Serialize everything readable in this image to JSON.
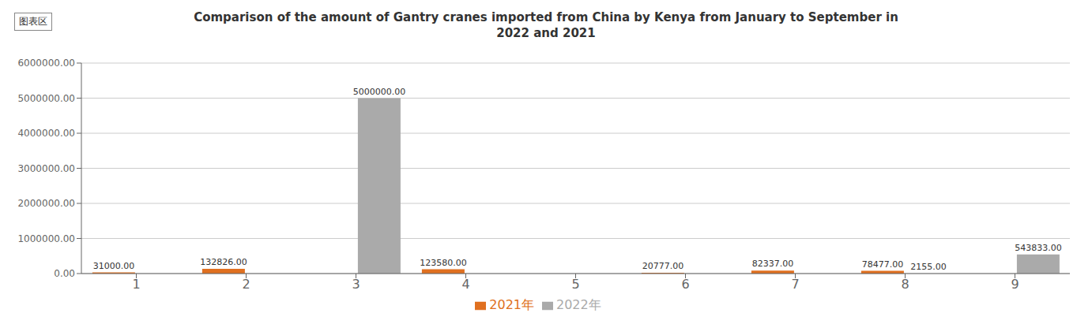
{
  "chart_data": {
    "type": "bar",
    "title": "Comparison of the amount of Gantry cranes imported from China by Kenya from January to September in\n2022 and 2021",
    "annotations": [
      "图表区"
    ],
    "categories": [
      "1",
      "2",
      "3",
      "4",
      "5",
      "6",
      "7",
      "8",
      "9"
    ],
    "series": [
      {
        "name": "2021年",
        "color": "#E07020",
        "values": [
          31000,
          132826,
          0,
          123580,
          0,
          20777,
          82337,
          78477,
          0
        ],
        "value_labels": [
          "31000.00",
          "132826.00",
          null,
          "123580.00",
          null,
          "20777.00",
          "82337.00",
          "78477.00",
          null
        ]
      },
      {
        "name": "2022年",
        "color": "#AAAAAA",
        "values": [
          0,
          0,
          5000000,
          0,
          0,
          0,
          0,
          2155,
          543833
        ],
        "value_labels": [
          null,
          null,
          "5000000.00",
          null,
          null,
          null,
          null,
          "2155.00",
          "543833.00"
        ]
      }
    ],
    "ylim": [
      0,
      6000000
    ],
    "yticks": [
      {
        "value": 0,
        "label": "0.00"
      },
      {
        "value": 1000000,
        "label": "1000000.00"
      },
      {
        "value": 2000000,
        "label": "2000000.00"
      },
      {
        "value": 3000000,
        "label": "3000000.00"
      },
      {
        "value": 4000000,
        "label": "4000000.00"
      },
      {
        "value": 5000000,
        "label": "5000000.00"
      },
      {
        "value": 6000000,
        "label": "6000000.00"
      }
    ],
    "grid": true,
    "legend": "bottom",
    "data_labels": true
  }
}
